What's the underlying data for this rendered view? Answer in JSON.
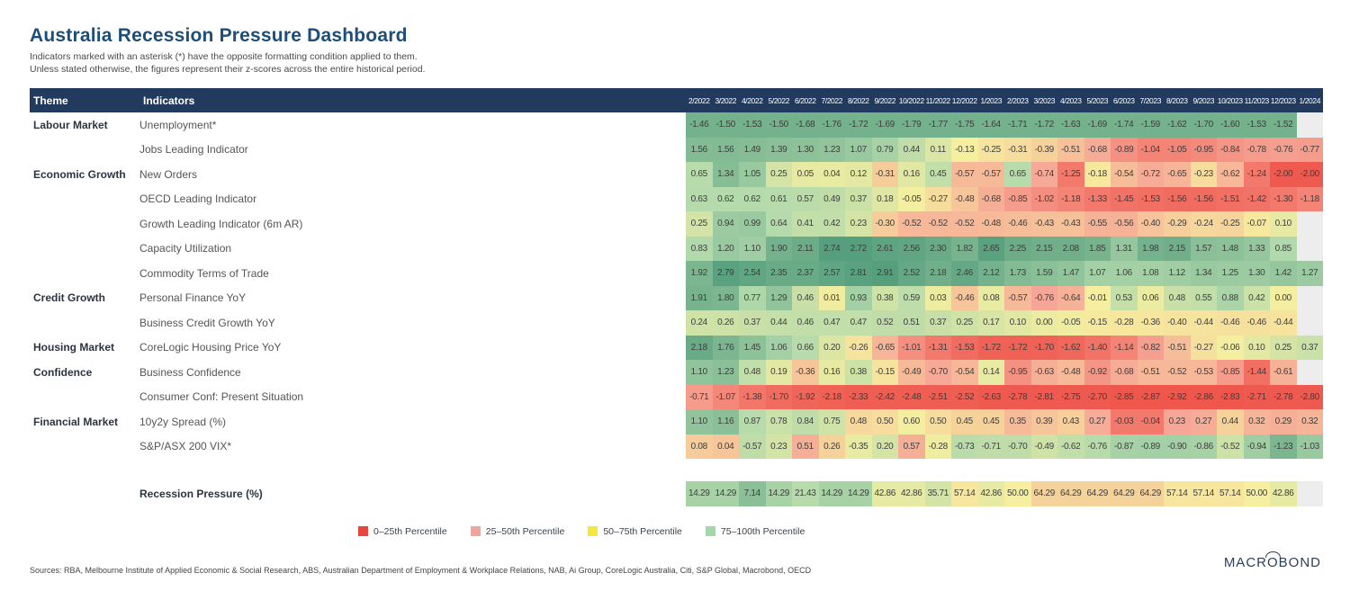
{
  "title": "Australia Recession Pressure Dashboard",
  "subtitle_line1": "Indicators marked with an asterisk (*) have the opposite formatting condition applied to them.",
  "subtitle_line2": "Unless stated otherwise, the figures represent their z-scores across the entire historical period.",
  "chart_data": {
    "type": "heatmap",
    "theme_header": "Theme",
    "indicators_header": "Indicators",
    "columns": [
      "2/2022",
      "3/2022",
      "4/2022",
      "5/2022",
      "6/2022",
      "7/2022",
      "8/2022",
      "9/2022",
      "10/2022",
      "11/2022",
      "12/2022",
      "1/2023",
      "2/2023",
      "3/2023",
      "4/2023",
      "5/2023",
      "6/2023",
      "7/2023",
      "8/2023",
      "9/2023",
      "10/2023",
      "11/2023",
      "12/2023",
      "1/2024"
    ],
    "rows": [
      {
        "theme": "Labour Market",
        "indicator": "Unemployment*",
        "values": [
          "-1.46",
          "-1.50",
          "-1.53",
          "-1.50",
          "-1.68",
          "-1.76",
          "-1.72",
          "-1.69",
          "-1.79",
          "-1.77",
          "-1.75",
          "-1.64",
          "-1.71",
          "-1.72",
          "-1.63",
          "-1.69",
          "-1.74",
          "-1.59",
          "-1.62",
          "-1.70",
          "-1.60",
          "-1.53",
          "-1.52",
          null
        ],
        "p": [
          92,
          92,
          92,
          92,
          92,
          92,
          92,
          92,
          92,
          92,
          92,
          92,
          92,
          92,
          92,
          92,
          92,
          92,
          92,
          92,
          92,
          92,
          92,
          null
        ]
      },
      {
        "theme": "",
        "indicator": "Jobs Leading Indicator",
        "values": [
          "1.56",
          "1.56",
          "1.49",
          "1.39",
          "1.30",
          "1.23",
          "1.07",
          "0.79",
          "0.44",
          "0.11",
          "-0.13",
          "-0.25",
          "-0.31",
          "-0.39",
          "-0.51",
          "-0.68",
          "-0.89",
          "-1.04",
          "-1.05",
          "-0.95",
          "-0.84",
          "-0.78",
          "-0.76",
          "-0.77"
        ],
        "p": [
          88,
          88,
          87,
          86,
          85,
          84,
          82,
          78,
          70,
          60,
          50,
          46,
          44,
          40,
          34,
          27,
          19,
          15,
          15,
          17,
          20,
          22,
          23,
          22
        ]
      },
      {
        "theme": "Economic Growth",
        "indicator": "New Orders",
        "values": [
          "0.65",
          "1.34",
          "1.05",
          "0.25",
          "0.05",
          "0.04",
          "0.12",
          "-0.31",
          "0.16",
          "0.45",
          "-0.57",
          "-0.57",
          "0.65",
          "-0.74",
          "-1.25",
          "-0.18",
          "-0.54",
          "-0.72",
          "-0.65",
          "-0.23",
          "-0.62",
          "-1.24",
          "-2.00",
          "-2.00"
        ],
        "p": [
          73,
          87,
          82,
          63,
          56,
          55,
          57,
          38,
          58,
          69,
          32,
          32,
          73,
          26,
          12,
          48,
          33,
          27,
          30,
          44,
          31,
          12,
          3,
          3
        ]
      },
      {
        "theme": "",
        "indicator": "OECD Leading Indicator",
        "values": [
          "0.63",
          "0.62",
          "0.62",
          "0.61",
          "0.57",
          "0.49",
          "0.37",
          "0.18",
          "-0.05",
          "-0.27",
          "-0.48",
          "-0.68",
          "-0.85",
          "-1.02",
          "-1.18",
          "-1.33",
          "-1.45",
          "-1.53",
          "-1.56",
          "-1.56",
          "-1.51",
          "-1.42",
          "-1.30",
          "-1.18"
        ],
        "p": [
          74,
          74,
          74,
          73,
          72,
          70,
          66,
          59,
          51,
          44,
          36,
          28,
          22,
          18,
          15,
          12,
          10,
          9,
          8,
          8,
          9,
          10,
          12,
          15
        ]
      },
      {
        "theme": "",
        "indicator": "Growth Leading Indicator (6m AR)",
        "values": [
          "0.25",
          "0.94",
          "0.99",
          "0.64",
          "0.41",
          "0.42",
          "0.23",
          "-0.30",
          "-0.52",
          "-0.52",
          "-0.52",
          "-0.48",
          "-0.46",
          "-0.43",
          "-0.43",
          "-0.55",
          "-0.56",
          "-0.40",
          "-0.29",
          "-0.24",
          "-0.25",
          "-0.07",
          "0.10",
          null
        ],
        "p": [
          63,
          81,
          82,
          74,
          69,
          69,
          62,
          38,
          31,
          31,
          31,
          32,
          33,
          34,
          34,
          29,
          29,
          35,
          39,
          42,
          41,
          48,
          56,
          null
        ]
      },
      {
        "theme": "",
        "indicator": "Capacity Utilization",
        "values": [
          "0.83",
          "1.20",
          "1.10",
          "1.90",
          "2.11",
          "2.74",
          "2.72",
          "2.61",
          "2.56",
          "2.30",
          "1.82",
          "2.65",
          "2.25",
          "2.15",
          "2.08",
          "1.85",
          "1.31",
          "1.98",
          "2.15",
          "1.57",
          "1.48",
          "1.33",
          "0.85",
          null
        ],
        "p": [
          75,
          82,
          80,
          92,
          94,
          100,
          100,
          98,
          97,
          95,
          91,
          99,
          94,
          93,
          93,
          91,
          83,
          92,
          93,
          86,
          85,
          83,
          75,
          null
        ]
      },
      {
        "theme": "",
        "indicator": "Commodity Terms of Trade",
        "values": [
          "1.92",
          "2.79",
          "2.54",
          "2.35",
          "2.37",
          "2.57",
          "2.81",
          "2.91",
          "2.52",
          "2.18",
          "2.46",
          "2.12",
          "1.73",
          "1.59",
          "1.47",
          "1.07",
          "1.06",
          "1.08",
          "1.12",
          "1.34",
          "1.25",
          "1.30",
          "1.42",
          "1.27"
        ],
        "p": [
          90,
          99,
          97,
          95,
          95,
          97,
          99,
          100,
          96,
          93,
          96,
          92,
          88,
          86,
          84,
          79,
          79,
          79,
          80,
          82,
          81,
          81,
          83,
          81
        ]
      },
      {
        "theme": "Credit Growth",
        "indicator": "Personal Finance YoY",
        "values": [
          "1.91",
          "1.80",
          "0.77",
          "1.29",
          "0.46",
          "0.01",
          "0.93",
          "0.38",
          "0.59",
          "0.03",
          "-0.46",
          "0.08",
          "-0.57",
          "-0.76",
          "-0.64",
          "-0.01",
          "0.53",
          "0.06",
          "0.48",
          "0.55",
          "0.88",
          "0.42",
          "0.00",
          null
        ],
        "p": [
          91,
          90,
          76,
          84,
          67,
          52,
          79,
          64,
          71,
          53,
          36,
          55,
          32,
          25,
          29,
          50,
          68,
          54,
          67,
          69,
          77,
          66,
          51,
          null
        ]
      },
      {
        "theme": "",
        "indicator": "Business Credit Growth YoY",
        "values": [
          "0.24",
          "0.26",
          "0.37",
          "0.44",
          "0.46",
          "0.47",
          "0.47",
          "0.52",
          "0.51",
          "0.37",
          "0.25",
          "0.17",
          "0.10",
          "0.00",
          "-0.05",
          "-0.15",
          "-0.28",
          "-0.36",
          "-0.40",
          "-0.44",
          "-0.46",
          "-0.46",
          "-0.44",
          null
        ],
        "p": [
          64,
          65,
          67,
          68,
          69,
          69,
          69,
          70,
          70,
          67,
          64,
          61,
          58,
          54,
          52,
          48,
          47,
          47,
          46,
          46,
          45,
          45,
          46,
          null
        ]
      },
      {
        "theme": "Housing Market",
        "indicator": "CoreLogic Housing Price YoY",
        "values": [
          "2.18",
          "1.76",
          "1.45",
          "1.06",
          "0.66",
          "0.20",
          "-0.26",
          "-0.65",
          "-1.01",
          "-1.31",
          "-1.53",
          "-1.72",
          "-1.72",
          "-1.70",
          "-1.62",
          "-1.40",
          "-1.14",
          "-0.82",
          "-0.51",
          "-0.27",
          "-0.06",
          "0.10",
          "0.25",
          "0.37"
        ],
        "p": [
          95,
          90,
          85,
          79,
          73,
          60,
          46,
          30,
          18,
          12,
          8,
          5,
          5,
          5,
          7,
          10,
          15,
          23,
          33,
          45,
          51,
          57,
          62,
          66
        ]
      },
      {
        "theme": "Confidence",
        "indicator": "Business Confidence",
        "values": [
          "1.10",
          "1.23",
          "0.48",
          "0.19",
          "-0.36",
          "0.16",
          "0.38",
          "-0.15",
          "-0.49",
          "-0.70",
          "-0.54",
          "0.14",
          "-0.95",
          "-0.63",
          "-0.48",
          "-0.92",
          "-0.68",
          "-0.51",
          "-0.52",
          "-0.53",
          "-0.85",
          "-1.44",
          "-0.61",
          null
        ],
        "p": [
          84,
          86,
          69,
          57,
          36,
          56,
          65,
          46,
          32,
          26,
          31,
          55,
          19,
          28,
          32,
          20,
          27,
          31,
          31,
          31,
          22,
          9,
          29,
          null
        ]
      },
      {
        "theme": "",
        "indicator": "Consumer Conf: Present Situation",
        "values": [
          "-0.71",
          "-1.07",
          "-1.38",
          "-1.70",
          "-1.92",
          "-2.18",
          "-2.33",
          "-2.42",
          "-2.48",
          "-2.51",
          "-2.52",
          "-2.63",
          "-2.78",
          "-2.81",
          "-2.75",
          "-2.70",
          "-2.85",
          "-2.87",
          "-2.92",
          "-2.86",
          "-2.83",
          "-2.71",
          "-2.78",
          "-2.80"
        ],
        "p": [
          22,
          16,
          11,
          8,
          6,
          5,
          4,
          4,
          4,
          4,
          4,
          3,
          3,
          3,
          3,
          3,
          2,
          2,
          2,
          2,
          2,
          3,
          3,
          3
        ]
      },
      {
        "theme": "Financial Market",
        "indicator": "10y2y Spread (%)",
        "values": [
          "1.10",
          "1.16",
          "0.87",
          "0.78",
          "0.84",
          "0.75",
          "0.48",
          "0.50",
          "0.60",
          "0.50",
          "0.45",
          "0.45",
          "0.35",
          "0.39",
          "0.43",
          "0.27",
          "-0.03",
          "-0.04",
          "0.23",
          "0.27",
          "0.44",
          "0.32",
          "0.29",
          "0.32"
        ],
        "p": [
          84,
          86,
          73,
          66,
          70,
          64,
          42,
          44,
          51,
          44,
          40,
          40,
          32,
          36,
          39,
          27,
          12,
          12,
          25,
          27,
          40,
          30,
          28,
          30
        ]
      },
      {
        "theme": "",
        "indicator": "S&P/ASX 200 VIX*",
        "values": [
          "0.08",
          "0.04",
          "-0.57",
          "0.23",
          "0.51",
          "0.26",
          "-0.35",
          "0.20",
          "0.57",
          "-0.28",
          "-0.73",
          "-0.71",
          "-0.70",
          "-0.49",
          "-0.62",
          "-0.76",
          "-0.87",
          "-0.89",
          "-0.90",
          "-0.86",
          "-0.52",
          "-0.94",
          "-1.23",
          "-1.03"
        ],
        "p": [
          38,
          36,
          70,
          63,
          28,
          40,
          55,
          63,
          28,
          52,
          72,
          70,
          70,
          64,
          69,
          73,
          78,
          79,
          79,
          78,
          65,
          80,
          90,
          82
        ]
      }
    ],
    "summary": {
      "label": "Recession Pressure (%)",
      "values": [
        "14.29",
        "14.29",
        "7.14",
        "14.29",
        "21.43",
        "14.29",
        "14.29",
        "42.86",
        "42.86",
        "35.71",
        "57.14",
        "42.86",
        "50.00",
        "64.29",
        "64.29",
        "64.29",
        "64.29",
        "64.29",
        "57.14",
        "57.14",
        "57.14",
        "50.00",
        "42.86",
        null
      ],
      "p": [
        78,
        78,
        86,
        78,
        73,
        78,
        78,
        56,
        56,
        63,
        47,
        56,
        50,
        40,
        40,
        40,
        40,
        40,
        47,
        47,
        47,
        50,
        56,
        null
      ]
    }
  },
  "legend": [
    {
      "label": "0–25th Percentile",
      "color": "#e8463c"
    },
    {
      "label": "25–50th Percentile",
      "color": "#f4a49b"
    },
    {
      "label": "50–75th Percentile",
      "color": "#f5e73a"
    },
    {
      "label": "75–100th Percentile",
      "color": "#a6d6ad"
    }
  ],
  "sources": "Sources: RBA, Melbourne Institute of Applied Economic & Social Research, ABS, Australian Department of Employment & Workplace Relations, NAB, Ai Group, CoreLogic Australia, Citi, S&P Global, Macrobond, OECD",
  "logo": {
    "pre": "MACR",
    "o": "O",
    "post": "BOND"
  },
  "colors": {
    "header_bg": "#223a5e",
    "title": "#1d4e79",
    "empty_cell": "#ededed",
    "scale": [
      "#ee5046",
      "#f6a696",
      "#f6ef9f",
      "#b2d9ac",
      "#569f7d"
    ]
  }
}
